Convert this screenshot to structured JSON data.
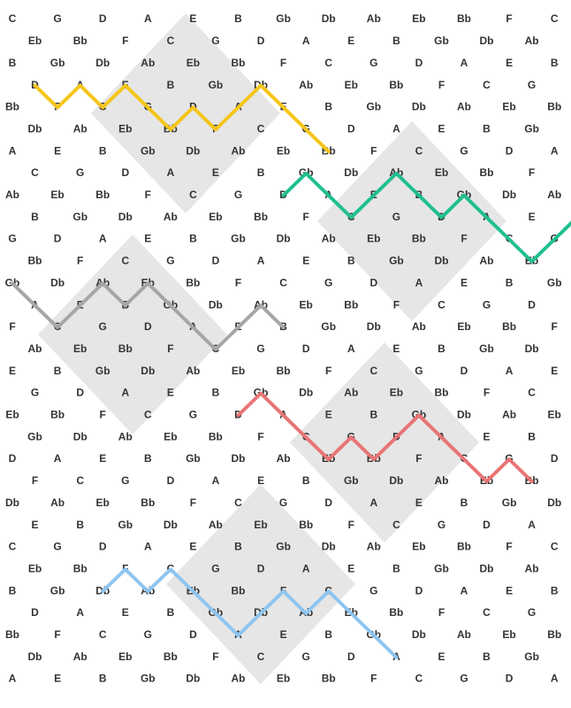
{
  "colors": {
    "background": "#ffffff",
    "diamond": "#e6e6e6",
    "text": "#333333"
  },
  "note_rows": [
    [
      "C",
      "G",
      "D",
      "A",
      "E",
      "B",
      "Gb",
      "Db",
      "Ab",
      "Eb",
      "Bb",
      "F",
      "C"
    ],
    [
      "Eb",
      "Bb",
      "F",
      "C",
      "G",
      "D",
      "A",
      "E",
      "B",
      "Gb",
      "Db",
      "Ab"
    ],
    [
      "B",
      "Gb",
      "Db",
      "Ab",
      "Eb",
      "Bb",
      "F",
      "C",
      "G",
      "D",
      "A",
      "E",
      "B"
    ],
    [
      "D",
      "A",
      "E",
      "B",
      "Gb",
      "Db",
      "Ab",
      "Eb",
      "Bb",
      "F",
      "C",
      "G"
    ],
    [
      "Bb",
      "F",
      "C",
      "G",
      "D",
      "A",
      "E",
      "B",
      "Gb",
      "Db",
      "Ab",
      "Eb",
      "Bb"
    ],
    [
      "Db",
      "Ab",
      "Eb",
      "Bb",
      "F",
      "C",
      "G",
      "D",
      "A",
      "E",
      "B",
      "Gb"
    ],
    [
      "A",
      "E",
      "B",
      "Gb",
      "Db",
      "Ab",
      "Eb",
      "Bb",
      "F",
      "C",
      "G",
      "D",
      "A"
    ],
    [
      "C",
      "G",
      "D",
      "A",
      "E",
      "B",
      "Gb",
      "Db",
      "Ab",
      "Eb",
      "Bb",
      "F"
    ],
    [
      "Ab",
      "Eb",
      "Bb",
      "F",
      "C",
      "G",
      "D",
      "A",
      "E",
      "B",
      "Gb",
      "Db",
      "Ab"
    ],
    [
      "B",
      "Gb",
      "Db",
      "Ab",
      "Eb",
      "Bb",
      "F",
      "C",
      "G",
      "D",
      "A",
      "E"
    ],
    [
      "G",
      "D",
      "A",
      "E",
      "B",
      "Gb",
      "Db",
      "Ab",
      "Eb",
      "Bb",
      "F",
      "C",
      "G"
    ],
    [
      "Bb",
      "F",
      "C",
      "G",
      "D",
      "A",
      "E",
      "B",
      "Gb",
      "Db",
      "Ab",
      "Eb"
    ],
    [
      "Gb",
      "Db",
      "Ab",
      "Eb",
      "Bb",
      "F",
      "C",
      "G",
      "D",
      "A",
      "E",
      "B",
      "Gb"
    ],
    [
      "A",
      "E",
      "B",
      "Gb",
      "Db",
      "Ab",
      "Eb",
      "Bb",
      "F",
      "C",
      "G",
      "D"
    ],
    [
      "F",
      "C",
      "G",
      "D",
      "A",
      "E",
      "B",
      "Gb",
      "Db",
      "Ab",
      "Eb",
      "Bb",
      "F"
    ],
    [
      "Ab",
      "Eb",
      "Bb",
      "F",
      "C",
      "G",
      "D",
      "A",
      "E",
      "B",
      "Gb",
      "Db"
    ],
    [
      "E",
      "B",
      "Gb",
      "Db",
      "Ab",
      "Eb",
      "Bb",
      "F",
      "C",
      "G",
      "D",
      "A",
      "E"
    ],
    [
      "G",
      "D",
      "A",
      "E",
      "B",
      "Gb",
      "Db",
      "Ab",
      "Eb",
      "Bb",
      "F",
      "C"
    ],
    [
      "Eb",
      "Bb",
      "F",
      "C",
      "G",
      "D",
      "A",
      "E",
      "B",
      "Gb",
      "Db",
      "Ab",
      "Eb"
    ],
    [
      "Gb",
      "Db",
      "Ab",
      "Eb",
      "Bb",
      "F",
      "C",
      "G",
      "D",
      "A",
      "E",
      "B"
    ],
    [
      "D",
      "A",
      "E",
      "B",
      "Gb",
      "Db",
      "Ab",
      "Eb",
      "Bb",
      "F",
      "C",
      "G",
      "D"
    ],
    [
      "F",
      "C",
      "G",
      "D",
      "A",
      "E",
      "B",
      "Gb",
      "Db",
      "Ab",
      "Eb",
      "Bb"
    ],
    [
      "Db",
      "Ab",
      "Eb",
      "Bb",
      "F",
      "C",
      "G",
      "D",
      "A",
      "E",
      "B",
      "Gb",
      "Db"
    ],
    [
      "E",
      "B",
      "Gb",
      "Db",
      "Ab",
      "Eb",
      "Bb",
      "F",
      "C",
      "G",
      "D",
      "A"
    ],
    [
      "C",
      "G",
      "D",
      "A",
      "E",
      "B",
      "Gb",
      "Db",
      "Ab",
      "Eb",
      "Bb",
      "F",
      "C"
    ],
    [
      "Eb",
      "Bb",
      "F",
      "C",
      "G",
      "D",
      "A",
      "E",
      "B",
      "Gb",
      "Db",
      "Ab"
    ],
    [
      "B",
      "Gb",
      "Db",
      "Ab",
      "Eb",
      "Bb",
      "F",
      "C",
      "G",
      "D",
      "A",
      "E",
      "B"
    ],
    [
      "D",
      "A",
      "E",
      "B",
      "Gb",
      "Db",
      "Ab",
      "Eb",
      "Bb",
      "F",
      "C",
      "G"
    ],
    [
      "Bb",
      "F",
      "C",
      "G",
      "D",
      "A",
      "E",
      "B",
      "Gb",
      "Db",
      "Ab",
      "Eb",
      "Bb"
    ],
    [
      "Db",
      "Ab",
      "Eb",
      "Bb",
      "F",
      "C",
      "G",
      "D",
      "A",
      "E",
      "B",
      "Gb"
    ],
    [
      "A",
      "E",
      "B",
      "Gb",
      "Db",
      "Ab",
      "Eb",
      "Bb",
      "F",
      "C",
      "G",
      "D",
      "A"
    ]
  ],
  "paths": [
    {
      "color": "#f5c518",
      "notes": [
        "D",
        "F",
        "A",
        "C",
        "E",
        "G",
        "Bb",
        "D",
        "F",
        "A",
        "C",
        "E",
        "G",
        "Bb"
      ]
    },
    {
      "color": "#1fbf8f",
      "notes": [
        "D",
        "Gb",
        "A",
        "C",
        "E",
        "Gb",
        "Ab",
        "B",
        "D",
        "Gb",
        "A",
        "C",
        "E",
        "Gb",
        "Ab"
      ]
    },
    {
      "color": "#a6a6a6",
      "notes": [
        "Gb",
        "A",
        "C",
        "E",
        "Ab",
        "B",
        "Eb",
        "Gb",
        "A",
        "C",
        "E",
        "Ab",
        "B"
      ]
    },
    {
      "color": "#e97474",
      "notes": [
        "D",
        "Gb",
        "A",
        "C",
        "Eb",
        "G",
        "Bb",
        "D",
        "Gb",
        "A",
        "C",
        "Eb",
        "G",
        "Bb"
      ]
    },
    {
      "color": "#8ec5f0",
      "notes": [
        "F",
        "A",
        "C",
        "E",
        "G",
        "B",
        "D",
        "F",
        "A",
        "C",
        "E",
        "G",
        "B"
      ]
    }
  ]
}
